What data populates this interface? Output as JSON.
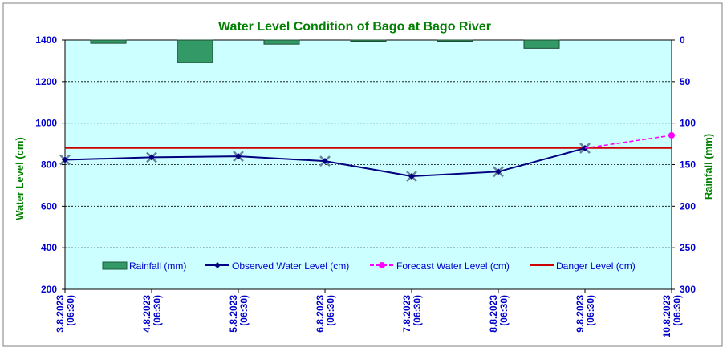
{
  "chart_data": {
    "type": "bar+line",
    "title": "Water Level Condition of Bago at Bago River",
    "ylabel": "Water Level (cm)",
    "y2label": "Rainfall (mm)",
    "ylim": [
      200,
      1400
    ],
    "y2lim": [
      0,
      300
    ],
    "y2_inverted": true,
    "yticks": [
      "200",
      "400",
      "600",
      "800",
      "1000",
      "1200",
      "1400"
    ],
    "y2ticks": [
      "0",
      "50",
      "100",
      "150",
      "200",
      "250",
      "300"
    ],
    "categories": [
      "3.8.2023 (06:30)",
      "4.8.2023 (06:30)",
      "5.8.2023 (06:30)",
      "6.8.2023 (06:30)",
      "7.8.2023 (06:30)",
      "8.8.2023 (06:30)",
      "9.8.2023 (06:30)",
      "10.8.2023 (06:30)"
    ],
    "category_lines": [
      [
        "3.8.2023",
        "(06:30)"
      ],
      [
        "4.8.2023",
        "(06:30)"
      ],
      [
        "5.8.2023",
        "(06:30)"
      ],
      [
        "6.8.2023",
        "(06:30)"
      ],
      [
        "7.8.2023",
        "(06:30)"
      ],
      [
        "8.8.2023",
        "(06:30)"
      ],
      [
        "9.8.2023",
        "(06:30)"
      ],
      [
        "10.8.2023",
        "(06:30)"
      ]
    ],
    "grid": true,
    "legend_position": "bottom-inside",
    "series": [
      {
        "name": "Rainfall (mm)",
        "type": "bar",
        "axis": "y2",
        "color": "#339966",
        "values": [
          4,
          27,
          5,
          0.5,
          0.5,
          10,
          null,
          null
        ]
      },
      {
        "name": "Observed Water Level (cm)",
        "type": "line",
        "axis": "y",
        "color": "#000080",
        "values": [
          823,
          835,
          840,
          817,
          744,
          766,
          879,
          null
        ]
      },
      {
        "name": "Forecast Water Level (cm)",
        "type": "line-dashed",
        "axis": "y",
        "color": "#ff00ff",
        "values": [
          null,
          null,
          null,
          null,
          null,
          null,
          879,
          941
        ]
      },
      {
        "name": "Danger Level (cm)",
        "type": "hline",
        "axis": "y",
        "color": "#cc0000",
        "value": 880
      }
    ],
    "colors": {
      "plot_background": "#ccffff",
      "title": "#008000",
      "axis_title": "#008000",
      "tick_labels": "#0000cc"
    }
  }
}
